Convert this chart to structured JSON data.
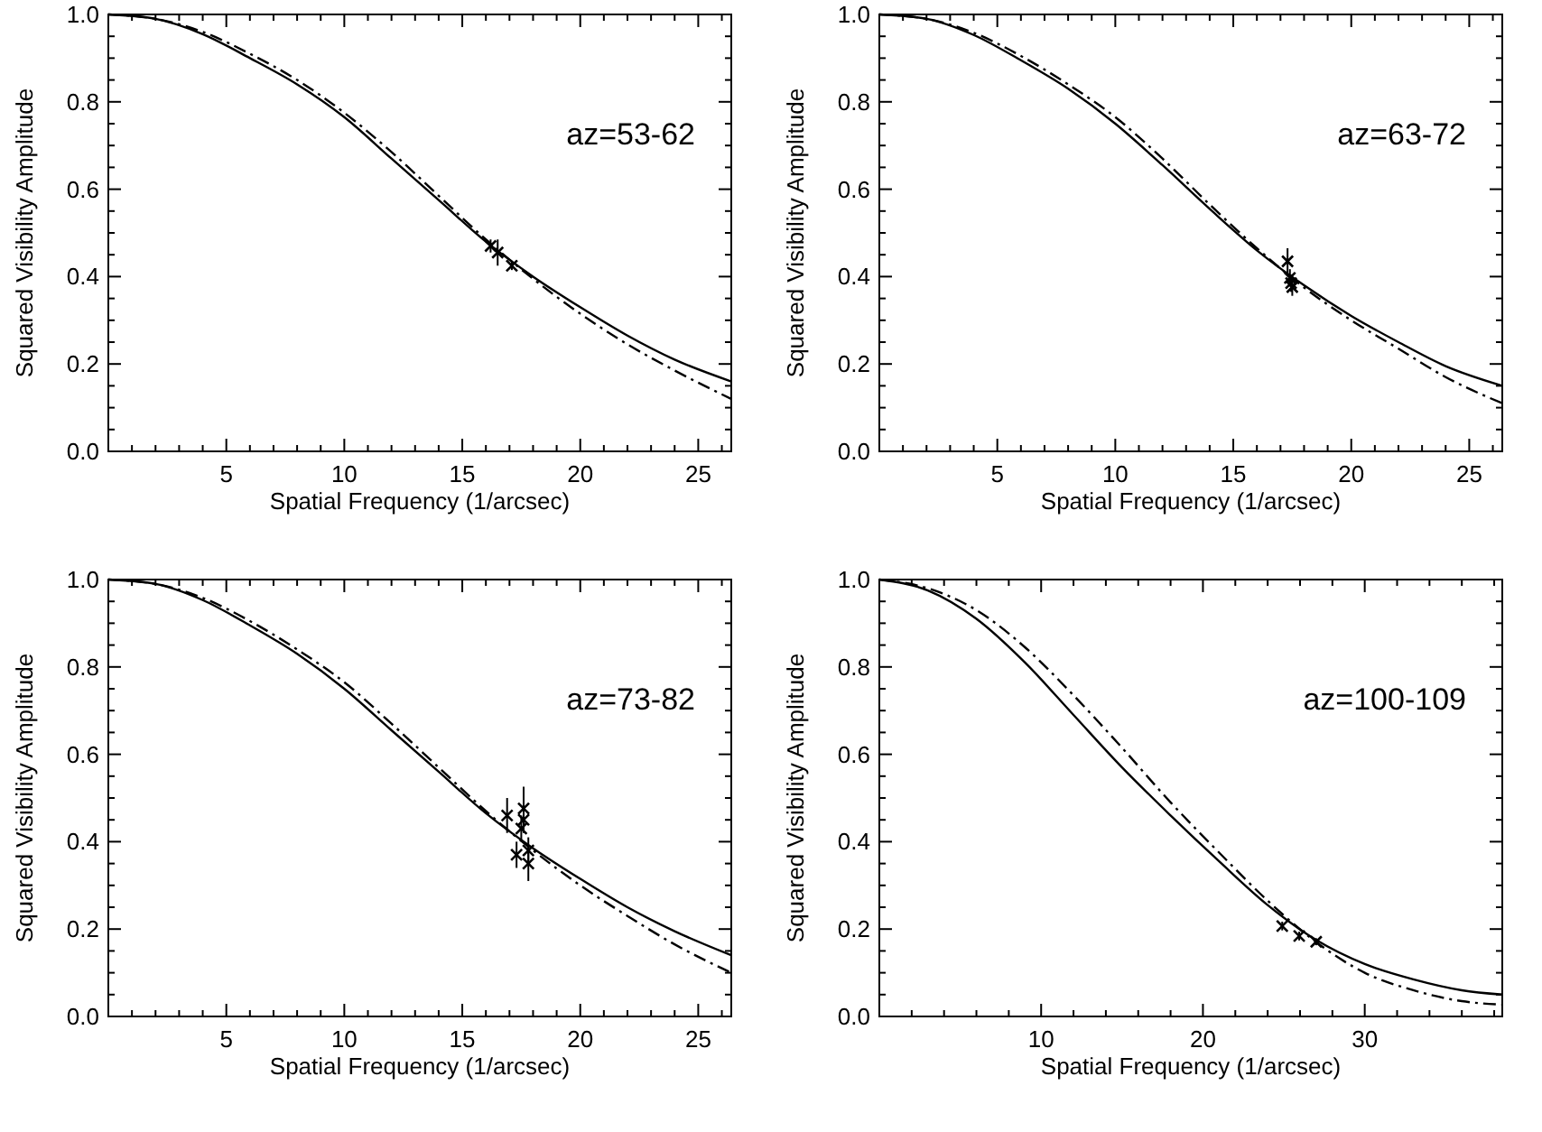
{
  "chart_data": [
    {
      "type": "line",
      "xlabel": "Spatial Frequency (1/arcsec)",
      "ylabel": "Squared Visibility Amplitude",
      "annotations": [
        "az=53-62"
      ],
      "xlim": [
        0,
        26.4
      ],
      "ylim": [
        0,
        1
      ],
      "xticks": [
        {
          "value": 1,
          "label": null
        },
        {
          "value": 2,
          "label": null
        },
        {
          "value": 3,
          "label": null
        },
        {
          "value": 4,
          "label": null
        },
        5,
        {
          "value": 6,
          "label": null
        },
        {
          "value": 7,
          "label": null
        },
        {
          "value": 8,
          "label": null
        },
        {
          "value": 9,
          "label": null
        },
        10,
        {
          "value": 11,
          "label": null
        },
        {
          "value": 12,
          "label": null
        },
        {
          "value": 13,
          "label": null
        },
        {
          "value": 14,
          "label": null
        },
        15,
        {
          "value": 16,
          "label": null
        },
        {
          "value": 17,
          "label": null
        },
        {
          "value": 18,
          "label": null
        },
        {
          "value": 19,
          "label": null
        },
        20,
        {
          "value": 21,
          "label": null
        },
        {
          "value": 22,
          "label": null
        },
        {
          "value": 23,
          "label": null
        },
        {
          "value": 24,
          "label": null
        },
        25,
        {
          "value": 26,
          "label": null
        }
      ],
      "yticks": [
        {
          "value": 0,
          "label": "0.0"
        },
        {
          "value": 0.05,
          "label": null
        },
        {
          "value": 0.1,
          "label": null
        },
        {
          "value": 0.15,
          "label": null
        },
        0.2,
        {
          "value": 0.25,
          "label": null
        },
        {
          "value": 0.3,
          "label": null
        },
        {
          "value": 0.35,
          "label": null
        },
        0.4,
        {
          "value": 0.45,
          "label": null
        },
        {
          "value": 0.5,
          "label": null
        },
        {
          "value": 0.55,
          "label": null
        },
        0.6,
        {
          "value": 0.65,
          "label": null
        },
        {
          "value": 0.7,
          "label": null
        },
        {
          "value": 0.75,
          "label": null
        },
        0.8,
        {
          "value": 0.85,
          "label": null
        },
        {
          "value": 0.9,
          "label": null
        },
        {
          "value": 0.95,
          "label": null
        },
        {
          "value": 1,
          "label": "1.0"
        }
      ],
      "series": [
        {
          "color": "#000000",
          "line_style": "solid",
          "x": [
            0,
            2,
            4,
            6,
            8,
            10,
            12,
            14,
            16,
            18,
            20,
            22,
            24,
            26.4
          ],
          "values": [
            1.0,
            0.99,
            0.955,
            0.9,
            0.84,
            0.765,
            0.67,
            0.575,
            0.48,
            0.4,
            0.33,
            0.265,
            0.21,
            0.16
          ]
        },
        {
          "color": "#000000",
          "line_style": "dashed",
          "x": [
            0,
            2,
            4,
            6,
            8,
            10,
            12,
            14,
            16,
            18,
            20,
            22,
            24,
            26.4
          ],
          "values": [
            1.0,
            0.99,
            0.96,
            0.91,
            0.85,
            0.775,
            0.685,
            0.585,
            0.485,
            0.395,
            0.315,
            0.245,
            0.185,
            0.12
          ]
        },
        {
          "type": "scatter",
          "color": "#000000",
          "marker": "cross",
          "x": [
            16.2,
            16.5,
            17.1
          ],
          "values": [
            0.47,
            0.455,
            0.425
          ],
          "errors": [
            0.015,
            0.03,
            0.01
          ]
        }
      ]
    },
    {
      "type": "line",
      "xlabel": "Spatial Frequency (1/arcsec)",
      "ylabel": "Squared Visibility Amplitude",
      "annotations": [
        "az=63-72"
      ],
      "xlim": [
        0,
        26.4
      ],
      "ylim": [
        0,
        1
      ],
      "xticks": [
        {
          "value": 1,
          "label": null
        },
        {
          "value": 2,
          "label": null
        },
        {
          "value": 3,
          "label": null
        },
        {
          "value": 4,
          "label": null
        },
        5,
        {
          "value": 6,
          "label": null
        },
        {
          "value": 7,
          "label": null
        },
        {
          "value": 8,
          "label": null
        },
        {
          "value": 9,
          "label": null
        },
        10,
        {
          "value": 11,
          "label": null
        },
        {
          "value": 12,
          "label": null
        },
        {
          "value": 13,
          "label": null
        },
        {
          "value": 14,
          "label": null
        },
        15,
        {
          "value": 16,
          "label": null
        },
        {
          "value": 17,
          "label": null
        },
        {
          "value": 18,
          "label": null
        },
        {
          "value": 19,
          "label": null
        },
        20,
        {
          "value": 21,
          "label": null
        },
        {
          "value": 22,
          "label": null
        },
        {
          "value": 23,
          "label": null
        },
        {
          "value": 24,
          "label": null
        },
        25,
        {
          "value": 26,
          "label": null
        }
      ],
      "yticks": [
        {
          "value": 0,
          "label": "0.0"
        },
        {
          "value": 0.05,
          "label": null
        },
        {
          "value": 0.1,
          "label": null
        },
        {
          "value": 0.15,
          "label": null
        },
        0.2,
        {
          "value": 0.25,
          "label": null
        },
        {
          "value": 0.3,
          "label": null
        },
        {
          "value": 0.35,
          "label": null
        },
        0.4,
        {
          "value": 0.45,
          "label": null
        },
        {
          "value": 0.5,
          "label": null
        },
        {
          "value": 0.55,
          "label": null
        },
        0.6,
        {
          "value": 0.65,
          "label": null
        },
        {
          "value": 0.7,
          "label": null
        },
        {
          "value": 0.75,
          "label": null
        },
        0.8,
        {
          "value": 0.85,
          "label": null
        },
        {
          "value": 0.9,
          "label": null
        },
        {
          "value": 0.95,
          "label": null
        },
        {
          "value": 1,
          "label": "1.0"
        }
      ],
      "series": [
        {
          "color": "#000000",
          "line_style": "solid",
          "x": [
            0,
            2,
            4,
            6,
            8,
            10,
            12,
            14,
            16,
            18,
            20,
            22,
            24,
            26.4
          ],
          "values": [
            1.0,
            0.99,
            0.953,
            0.895,
            0.83,
            0.75,
            0.655,
            0.555,
            0.46,
            0.38,
            0.31,
            0.25,
            0.195,
            0.15
          ]
        },
        {
          "color": "#000000",
          "line_style": "dashed",
          "x": [
            0,
            2,
            4,
            6,
            8,
            10,
            12,
            14,
            16,
            18,
            20,
            22,
            24,
            26.4
          ],
          "values": [
            1.0,
            0.99,
            0.958,
            0.905,
            0.84,
            0.765,
            0.67,
            0.565,
            0.465,
            0.375,
            0.3,
            0.235,
            0.17,
            0.11
          ]
        },
        {
          "type": "scatter",
          "color": "#000000",
          "marker": "cross",
          "x": [
            17.3,
            17.4,
            17.45,
            17.5
          ],
          "values": [
            0.435,
            0.397,
            0.385,
            0.376
          ],
          "errors": [
            0.03,
            0.02,
            0.02,
            0.02
          ]
        }
      ]
    },
    {
      "type": "line",
      "xlabel": "Spatial Frequency (1/arcsec)",
      "ylabel": "Squared Visibility Amplitude",
      "annotations": [
        "az=73-82"
      ],
      "xlim": [
        0,
        26.4
      ],
      "ylim": [
        0,
        1
      ],
      "xticks": [
        {
          "value": 1,
          "label": null
        },
        {
          "value": 2,
          "label": null
        },
        {
          "value": 3,
          "label": null
        },
        {
          "value": 4,
          "label": null
        },
        5,
        {
          "value": 6,
          "label": null
        },
        {
          "value": 7,
          "label": null
        },
        {
          "value": 8,
          "label": null
        },
        {
          "value": 9,
          "label": null
        },
        10,
        {
          "value": 11,
          "label": null
        },
        {
          "value": 12,
          "label": null
        },
        {
          "value": 13,
          "label": null
        },
        {
          "value": 14,
          "label": null
        },
        15,
        {
          "value": 16,
          "label": null
        },
        {
          "value": 17,
          "label": null
        },
        {
          "value": 18,
          "label": null
        },
        {
          "value": 19,
          "label": null
        },
        20,
        {
          "value": 21,
          "label": null
        },
        {
          "value": 22,
          "label": null
        },
        {
          "value": 23,
          "label": null
        },
        {
          "value": 24,
          "label": null
        },
        25,
        {
          "value": 26,
          "label": null
        }
      ],
      "yticks": [
        {
          "value": 0,
          "label": "0.0"
        },
        {
          "value": 0.05,
          "label": null
        },
        {
          "value": 0.1,
          "label": null
        },
        {
          "value": 0.15,
          "label": null
        },
        0.2,
        {
          "value": 0.25,
          "label": null
        },
        {
          "value": 0.3,
          "label": null
        },
        {
          "value": 0.35,
          "label": null
        },
        0.4,
        {
          "value": 0.45,
          "label": null
        },
        {
          "value": 0.5,
          "label": null
        },
        {
          "value": 0.55,
          "label": null
        },
        0.6,
        {
          "value": 0.65,
          "label": null
        },
        {
          "value": 0.7,
          "label": null
        },
        {
          "value": 0.75,
          "label": null
        },
        0.8,
        {
          "value": 0.85,
          "label": null
        },
        {
          "value": 0.9,
          "label": null
        },
        {
          "value": 0.95,
          "label": null
        },
        {
          "value": 1,
          "label": "1.0"
        }
      ],
      "series": [
        {
          "color": "#000000",
          "line_style": "solid",
          "x": [
            0,
            2,
            4,
            6,
            8,
            10,
            12,
            14,
            16,
            18,
            20,
            22,
            24,
            26.4
          ],
          "values": [
            1.0,
            0.99,
            0.953,
            0.895,
            0.83,
            0.75,
            0.655,
            0.56,
            0.465,
            0.385,
            0.315,
            0.25,
            0.195,
            0.14
          ]
        },
        {
          "color": "#000000",
          "line_style": "dashed",
          "x": [
            0,
            2,
            4,
            6,
            8,
            10,
            12,
            14,
            16,
            18,
            20,
            22,
            24,
            26.4
          ],
          "values": [
            1.0,
            0.99,
            0.958,
            0.905,
            0.84,
            0.765,
            0.67,
            0.57,
            0.47,
            0.38,
            0.3,
            0.23,
            0.165,
            0.1
          ]
        },
        {
          "type": "scatter",
          "color": "#000000",
          "marker": "cross",
          "x": [
            16.9,
            17.3,
            17.6,
            17.6,
            17.5,
            17.8,
            17.8
          ],
          "values": [
            0.46,
            0.37,
            0.476,
            0.45,
            0.43,
            0.38,
            0.35
          ],
          "errors": [
            0.04,
            0.03,
            0.05,
            0.03,
            0.03,
            0.03,
            0.04
          ]
        }
      ]
    },
    {
      "type": "line",
      "xlabel": "Spatial Frequency (1/arcsec)",
      "ylabel": "Squared Visibility Amplitude",
      "annotations": [
        "az=100-109"
      ],
      "xlim": [
        0,
        38.5
      ],
      "ylim": [
        0,
        1
      ],
      "xticks": [
        {
          "value": 2,
          "label": null
        },
        {
          "value": 4,
          "label": null
        },
        {
          "value": 6,
          "label": null
        },
        {
          "value": 8,
          "label": null
        },
        10,
        {
          "value": 12,
          "label": null
        },
        {
          "value": 14,
          "label": null
        },
        {
          "value": 16,
          "label": null
        },
        {
          "value": 18,
          "label": null
        },
        20,
        {
          "value": 22,
          "label": null
        },
        {
          "value": 24,
          "label": null
        },
        {
          "value": 26,
          "label": null
        },
        {
          "value": 28,
          "label": null
        },
        30,
        {
          "value": 32,
          "label": null
        },
        {
          "value": 34,
          "label": null
        },
        {
          "value": 36,
          "label": null
        },
        {
          "value": 38,
          "label": null
        }
      ],
      "yticks": [
        {
          "value": 0,
          "label": "0.0"
        },
        {
          "value": 0.05,
          "label": null
        },
        {
          "value": 0.1,
          "label": null
        },
        {
          "value": 0.15,
          "label": null
        },
        0.2,
        {
          "value": 0.25,
          "label": null
        },
        {
          "value": 0.3,
          "label": null
        },
        {
          "value": 0.35,
          "label": null
        },
        0.4,
        {
          "value": 0.45,
          "label": null
        },
        {
          "value": 0.5,
          "label": null
        },
        {
          "value": 0.55,
          "label": null
        },
        0.6,
        {
          "value": 0.65,
          "label": null
        },
        {
          "value": 0.7,
          "label": null
        },
        {
          "value": 0.75,
          "label": null
        },
        0.8,
        {
          "value": 0.85,
          "label": null
        },
        {
          "value": 0.9,
          "label": null
        },
        {
          "value": 0.95,
          "label": null
        },
        {
          "value": 1,
          "label": "1.0"
        }
      ],
      "series": [
        {
          "color": "#000000",
          "line_style": "solid",
          "x": [
            0,
            3,
            6,
            9,
            12,
            15,
            18,
            21,
            24,
            27,
            30,
            33,
            36,
            38.5
          ],
          "values": [
            1.0,
            0.975,
            0.91,
            0.81,
            0.69,
            0.57,
            0.46,
            0.355,
            0.255,
            0.175,
            0.12,
            0.085,
            0.06,
            0.05
          ]
        },
        {
          "color": "#000000",
          "line_style": "dashed",
          "x": [
            0,
            3,
            6,
            9,
            12,
            15,
            18,
            21,
            24,
            27,
            30,
            33,
            36,
            38.5
          ],
          "values": [
            1.0,
            0.98,
            0.93,
            0.845,
            0.735,
            0.615,
            0.49,
            0.375,
            0.265,
            0.17,
            0.1,
            0.06,
            0.035,
            0.027
          ]
        },
        {
          "type": "scatter",
          "color": "#000000",
          "marker": "cross",
          "x": [
            24.9,
            25.95,
            27.0
          ],
          "values": [
            0.207,
            0.184,
            0.171
          ],
          "errors": [
            0.01,
            0.01,
            0.008
          ]
        }
      ]
    }
  ]
}
